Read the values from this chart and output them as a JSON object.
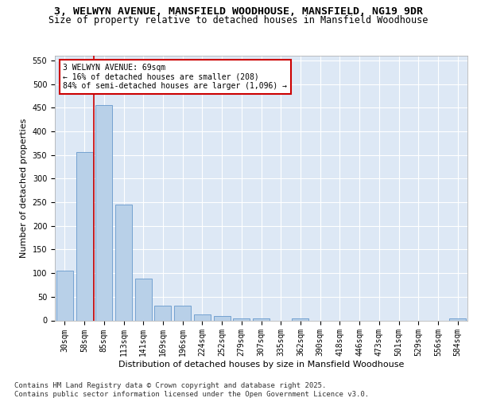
{
  "title_line1": "3, WELWYN AVENUE, MANSFIELD WOODHOUSE, MANSFIELD, NG19 9DR",
  "title_line2": "Size of property relative to detached houses in Mansfield Woodhouse",
  "xlabel": "Distribution of detached houses by size in Mansfield Woodhouse",
  "ylabel": "Number of detached properties",
  "footer": "Contains HM Land Registry data © Crown copyright and database right 2025.\nContains public sector information licensed under the Open Government Licence v3.0.",
  "bar_labels": [
    "30sqm",
    "58sqm",
    "85sqm",
    "113sqm",
    "141sqm",
    "169sqm",
    "196sqm",
    "224sqm",
    "252sqm",
    "279sqm",
    "307sqm",
    "335sqm",
    "362sqm",
    "390sqm",
    "418sqm",
    "446sqm",
    "473sqm",
    "501sqm",
    "529sqm",
    "556sqm",
    "584sqm"
  ],
  "bar_values": [
    105,
    357,
    455,
    245,
    89,
    32,
    32,
    13,
    9,
    5,
    5,
    0,
    4,
    0,
    0,
    0,
    0,
    0,
    0,
    0,
    4
  ],
  "bar_color": "#b8d0e8",
  "bar_edge_color": "#6699cc",
  "annotation_box_text": "3 WELWYN AVENUE: 69sqm\n← 16% of detached houses are smaller (208)\n84% of semi-detached houses are larger (1,096) →",
  "annotation_box_color": "#cc0000",
  "vline_x": 1.5,
  "vline_color": "#cc0000",
  "ylim": [
    0,
    560
  ],
  "yticks": [
    0,
    50,
    100,
    150,
    200,
    250,
    300,
    350,
    400,
    450,
    500,
    550
  ],
  "background_color": "#dde8f5",
  "title_fontsize": 9.5,
  "subtitle_fontsize": 8.5,
  "axis_label_fontsize": 8,
  "tick_fontsize": 7,
  "footer_fontsize": 6.5
}
